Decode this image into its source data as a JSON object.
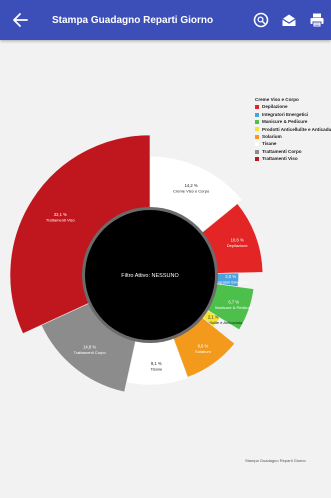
{
  "appbar": {
    "title": "Stampa Guadagno Reparti Giorno",
    "back_icon": "arrow-left-icon",
    "actions": [
      {
        "icon": "filter-search-icon"
      },
      {
        "icon": "email-open-icon"
      },
      {
        "icon": "printer-icon"
      }
    ]
  },
  "center_label": "Filtro Attivo: NESSUNO",
  "footer_note": "Stampa Guadagno Reparti Giorno",
  "legend": {
    "title": "Creme Viso e Corpo",
    "items": [
      {
        "label": "Depilazione",
        "color": "#e32526"
      },
      {
        "label": "Integratori Energetici",
        "color": "#4aa3df"
      },
      {
        "label": "Manicure & Pedicure",
        "color": "#4cc04a"
      },
      {
        "label": "Prodotti Anticellulite e Anticaduta",
        "color": "#f3e335"
      },
      {
        "label": "Solarium",
        "color": "#f39a1d"
      },
      {
        "label": "Tisane",
        "color": "#ffffff"
      },
      {
        "label": "Trattamenti Corpo",
        "color": "#8c8c8c"
      },
      {
        "label": "Trattamenti Viso",
        "color": "#c0171e"
      }
    ]
  },
  "chart_data": {
    "type": "pie",
    "donut": true,
    "start_angle": "top",
    "direction": "clockwise",
    "slices": [
      {
        "name": "Creme Viso e Corpo",
        "value": 14.2,
        "pct_label": "14,2 %",
        "color": "#ffffff"
      },
      {
        "name": "Depilazione",
        "value": 10.6,
        "pct_label": "10,6 %",
        "color": "#e32526"
      },
      {
        "name": "Integratori Energetici",
        "value": 2.5,
        "pct_label": "2,5 %",
        "color": "#4aa3df"
      },
      {
        "name": "Manicure & Pedicure",
        "value": 6.7,
        "pct_label": "6,7 %",
        "color": "#4cc04a"
      },
      {
        "name": "Prodotti Anticellulite e Anticaduta",
        "value": 2.1,
        "pct_label": "2,1 %",
        "color": "#f3e335"
      },
      {
        "name": "Solarium",
        "value": 8.6,
        "pct_label": "8,6 %",
        "color": "#f39a1d"
      },
      {
        "name": "Tisane",
        "value": 9.1,
        "pct_label": "9,1 %",
        "color": "#ffffff"
      },
      {
        "name": "Trattamenti Corpo",
        "value": 14.8,
        "pct_label": "14,8 %",
        "color": "#8c8c8c"
      },
      {
        "name": "Trattamenti Viso",
        "value": 32.1,
        "pct_label": "32,1 %",
        "color": "#c0171e"
      }
    ]
  }
}
